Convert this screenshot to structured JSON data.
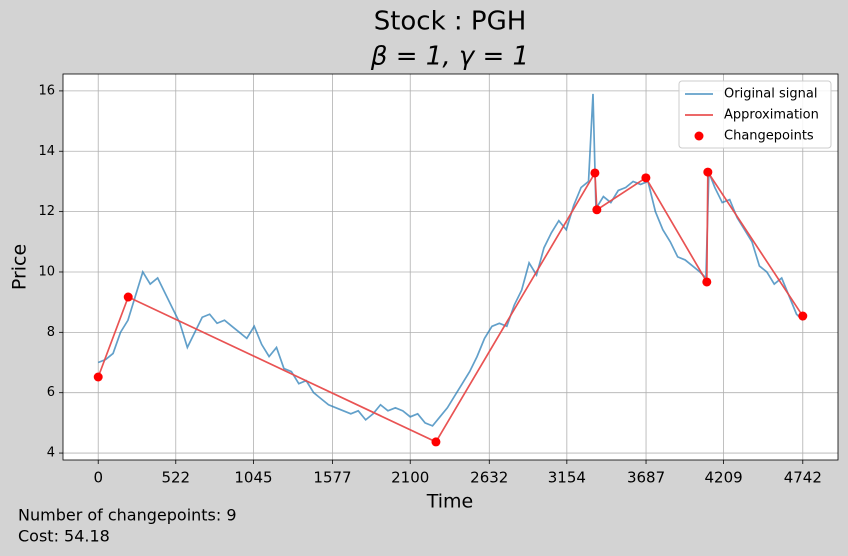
{
  "chart_data": {
    "type": "line",
    "title": "Stock : PGH",
    "subtitle": "β = 1, γ = 1",
    "xlabel": "Time",
    "ylabel": "Price",
    "xlim": [
      -237,
      4979
    ],
    "ylim": [
      3.77,
      16.56
    ],
    "xticks": [
      0,
      522,
      1045,
      1577,
      2100,
      2632,
      3154,
      3687,
      4209,
      4742
    ],
    "yticks": [
      4,
      6,
      8,
      10,
      12,
      14,
      16
    ],
    "grid": true,
    "legend": "upper right",
    "series": [
      {
        "name": "Original signal",
        "color": "#1f77b4",
        "kind": "line",
        "x": [
          0,
          50,
          100,
          150,
          200,
          250,
          300,
          350,
          400,
          450,
          500,
          550,
          600,
          650,
          700,
          750,
          800,
          850,
          900,
          950,
          1000,
          1050,
          1100,
          1150,
          1200,
          1250,
          1300,
          1350,
          1400,
          1450,
          1500,
          1550,
          1600,
          1650,
          1700,
          1750,
          1800,
          1850,
          1900,
          1950,
          2000,
          2050,
          2100,
          2150,
          2200,
          2250,
          2300,
          2350,
          2400,
          2450,
          2500,
          2550,
          2600,
          2650,
          2700,
          2750,
          2800,
          2850,
          2900,
          2950,
          3000,
          3050,
          3100,
          3150,
          3200,
          3250,
          3300,
          3330,
          3350,
          3400,
          3450,
          3500,
          3550,
          3600,
          3650,
          3700,
          3750,
          3800,
          3850,
          3900,
          3950,
          4000,
          4050,
          4090,
          4110,
          4150,
          4200,
          4250,
          4300,
          4350,
          4400,
          4450,
          4500,
          4550,
          4600,
          4650,
          4700,
          4742
        ],
        "values": [
          7.0,
          7.1,
          7.3,
          8.0,
          8.4,
          9.2,
          10.0,
          9.6,
          9.8,
          9.3,
          8.8,
          8.3,
          7.5,
          8.0,
          8.5,
          8.6,
          8.3,
          8.4,
          8.2,
          8.0,
          7.8,
          8.2,
          7.6,
          7.2,
          7.5,
          6.8,
          6.7,
          6.3,
          6.4,
          6.0,
          5.8,
          5.6,
          5.5,
          5.4,
          5.3,
          5.4,
          5.1,
          5.3,
          5.6,
          5.4,
          5.5,
          5.4,
          5.2,
          5.3,
          5.0,
          4.9,
          5.2,
          5.5,
          5.9,
          6.3,
          6.7,
          7.2,
          7.8,
          8.2,
          8.3,
          8.2,
          8.9,
          9.4,
          10.3,
          9.9,
          10.8,
          11.3,
          11.7,
          11.4,
          12.2,
          12.8,
          13.0,
          15.9,
          12.1,
          12.5,
          12.3,
          12.7,
          12.8,
          13.0,
          12.9,
          13.0,
          12.0,
          11.4,
          11.0,
          10.5,
          10.4,
          10.2,
          10.0,
          9.8,
          13.3,
          12.8,
          12.3,
          12.4,
          11.8,
          11.4,
          11.0,
          10.2,
          10.0,
          9.6,
          9.8,
          9.2,
          8.6,
          8.4
        ]
      },
      {
        "name": "Approximation",
        "color": "#e84a4a",
        "kind": "line",
        "x": [
          0,
          202,
          2273,
          3343,
          3356,
          3686,
          4096,
          4103,
          4742
        ],
        "values": [
          6.52,
          9.17,
          4.37,
          13.28,
          12.06,
          13.12,
          9.67,
          13.31,
          8.54
        ]
      },
      {
        "name": "Changepoints",
        "color": "#ff0000",
        "kind": "scatter",
        "x": [
          0,
          202,
          2273,
          3343,
          3356,
          3686,
          4096,
          4103,
          4742
        ],
        "values": [
          6.52,
          9.17,
          4.37,
          13.28,
          12.06,
          13.12,
          9.67,
          13.31,
          8.54
        ]
      }
    ],
    "annotations": [
      "Number of changepoints: 9",
      "Cost: 54.18"
    ]
  }
}
